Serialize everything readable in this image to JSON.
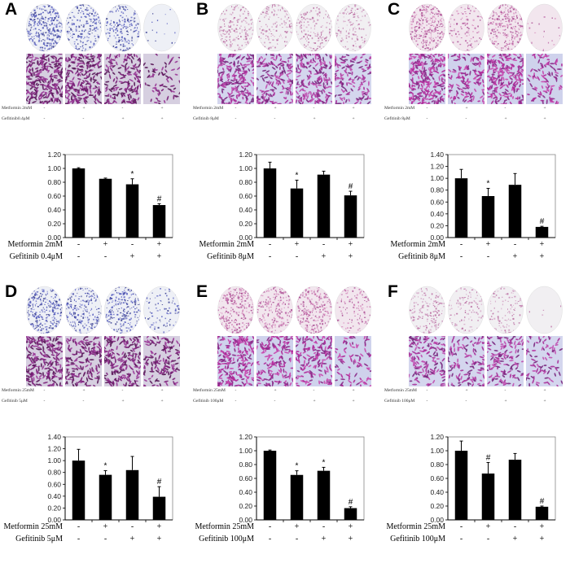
{
  "colors": {
    "bar": "#000000",
    "oval_crystal_violet": "#5a5fc0",
    "oval_pink": "#c05aa8",
    "micro_purple": "#8a2a8a",
    "micro_bg": "#c8c8e0"
  },
  "chart_data": [
    {
      "panel": "A",
      "type": "bar",
      "categories": [
        "1",
        "2",
        "3",
        "4"
      ],
      "values": [
        1.0,
        0.85,
        0.77,
        0.47
      ],
      "errors": [
        0.01,
        0.01,
        0.08,
        0.02
      ],
      "annotations": [
        "",
        "",
        "*",
        "#"
      ],
      "ylim": [
        0,
        1.2
      ],
      "yticks": [
        "0.00",
        "0.20",
        "0.40",
        "0.60",
        "0.80",
        "1.00",
        "1.20"
      ],
      "rows": [
        {
          "label": "Metformin 2mM",
          "signs": [
            "-",
            "+",
            "-",
            "+"
          ]
        },
        {
          "label": "Gefitinib 0.4μM",
          "signs": [
            "-",
            "-",
            "+",
            "+"
          ]
        }
      ],
      "image_rows": [
        {
          "label": "Metformin 2mM",
          "signs": [
            "-",
            "+",
            "-",
            "+"
          ]
        },
        {
          "label": "Gefitinib0.4μM",
          "signs": [
            "-",
            "-",
            "+",
            "+"
          ]
        }
      ],
      "stain": "violet",
      "oval_density": [
        0.9,
        0.6,
        0.5,
        0.05
      ],
      "micro_density": [
        0.9,
        0.8,
        0.6,
        0.25
      ]
    },
    {
      "panel": "B",
      "type": "bar",
      "categories": [
        "1",
        "2",
        "3",
        "4"
      ],
      "values": [
        1.0,
        0.71,
        0.91,
        0.61
      ],
      "errors": [
        0.09,
        0.12,
        0.05,
        0.06
      ],
      "annotations": [
        "",
        "*",
        "",
        "#"
      ],
      "ylim": [
        0,
        1.2
      ],
      "yticks": [
        "0.00",
        "0.20",
        "0.40",
        "0.60",
        "0.80",
        "1.00",
        "1.20"
      ],
      "rows": [
        {
          "label": "Metformin 2mM",
          "signs": [
            "-",
            "+",
            "-",
            "+"
          ]
        },
        {
          "label": "Gefitinib 8μM",
          "signs": [
            "-",
            "-",
            "+",
            "+"
          ]
        }
      ],
      "image_rows": [
        {
          "label": "Metformin 2mM",
          "signs": [
            "-",
            "+",
            "-",
            "+"
          ]
        },
        {
          "label": "Gefitinib 8μM",
          "signs": [
            "-",
            "-",
            "+",
            "+"
          ]
        }
      ],
      "stain": "pink-light",
      "oval_density": [
        0.5,
        0.4,
        0.45,
        0.35
      ],
      "micro_density": [
        0.8,
        0.6,
        0.7,
        0.5
      ]
    },
    {
      "panel": "C",
      "type": "bar",
      "categories": [
        "1",
        "2",
        "3",
        "4"
      ],
      "values": [
        1.0,
        0.7,
        0.89,
        0.18
      ],
      "errors": [
        0.15,
        0.13,
        0.19,
        0.01
      ],
      "annotations": [
        "",
        "*",
        "",
        "#"
      ],
      "ylim": [
        0,
        1.4
      ],
      "yticks": [
        "0.00",
        "0.20",
        "0.40",
        "0.60",
        "0.80",
        "1.00",
        "1.20",
        "1.40"
      ],
      "rows": [
        {
          "label": "Metformin 2mM",
          "signs": [
            "-",
            "+",
            "-",
            "+"
          ]
        },
        {
          "label": "Gefitinib 8μM",
          "signs": [
            "-",
            "-",
            "+",
            "+"
          ]
        }
      ],
      "image_rows": [
        {
          "label": "Metformin 2mM",
          "signs": [
            "-",
            "+",
            "-",
            "+"
          ]
        },
        {
          "label": "Gefitinib 8μM",
          "signs": [
            "-",
            "-",
            "+",
            "+"
          ]
        }
      ],
      "stain": "pink",
      "oval_density": [
        0.8,
        0.3,
        0.7,
        0.05
      ],
      "micro_density": [
        0.9,
        0.5,
        0.8,
        0.35
      ]
    },
    {
      "panel": "D",
      "type": "bar",
      "categories": [
        "1",
        "2",
        "3",
        "4"
      ],
      "values": [
        1.0,
        0.76,
        0.84,
        0.39
      ],
      "errors": [
        0.19,
        0.07,
        0.23,
        0.17
      ],
      "annotations": [
        "",
        "*",
        "",
        "#"
      ],
      "ylim": [
        0,
        1.4
      ],
      "yticks": [
        "0.00",
        "0.20",
        "0.40",
        "0.60",
        "0.80",
        "1.00",
        "1.20",
        "1.40"
      ],
      "rows": [
        {
          "label": "Metformin 25mM",
          "signs": [
            "-",
            "+",
            "-",
            "+"
          ]
        },
        {
          "label": "Gefitinib 5μM",
          "signs": [
            "-",
            "-",
            "+",
            "+"
          ]
        }
      ],
      "image_rows": [
        {
          "label": "Metformin 25mM",
          "signs": [
            "-",
            "+",
            "-",
            "+"
          ]
        },
        {
          "label": "Gefitinib 5μM",
          "signs": [
            "-",
            "-",
            "+",
            "+"
          ]
        }
      ],
      "stain": "violet",
      "oval_density": [
        0.8,
        0.6,
        0.6,
        0.25
      ],
      "micro_density": [
        0.8,
        0.6,
        0.7,
        0.5
      ]
    },
    {
      "panel": "E",
      "type": "bar",
      "categories": [
        "1",
        "2",
        "3",
        "4"
      ],
      "values": [
        1.0,
        0.65,
        0.71,
        0.17
      ],
      "errors": [
        0.01,
        0.06,
        0.05,
        0.02
      ],
      "annotations": [
        "",
        "*",
        "*",
        "#"
      ],
      "ylim": [
        0,
        1.2
      ],
      "yticks": [
        "0.00",
        "0.20",
        "0.40",
        "0.60",
        "0.80",
        "1.00",
        "1.20"
      ],
      "rows": [
        {
          "label": "Metformin 25mM",
          "signs": [
            "-",
            "+",
            "-",
            "+"
          ]
        },
        {
          "label": "Gefitinib 100μM",
          "signs": [
            "-",
            "-",
            "+",
            "+"
          ]
        }
      ],
      "image_rows": [
        {
          "label": "Metformin 25mM",
          "signs": [
            "-",
            "+",
            "-",
            "+"
          ]
        },
        {
          "label": "Gefitinib 100μM",
          "signs": [
            "-",
            "-",
            "+",
            "+"
          ]
        }
      ],
      "stain": "pink",
      "oval_density": [
        0.8,
        0.6,
        0.7,
        0.3
      ],
      "micro_density": [
        0.8,
        0.6,
        0.6,
        0.3
      ]
    },
    {
      "panel": "F",
      "type": "bar",
      "categories": [
        "1",
        "2",
        "3",
        "4"
      ],
      "values": [
        1.0,
        0.67,
        0.87,
        0.19
      ],
      "errors": [
        0.14,
        0.16,
        0.09,
        0.01
      ],
      "annotations": [
        "",
        "#",
        "",
        "#"
      ],
      "ylim": [
        0,
        1.2
      ],
      "yticks": [
        "0.00",
        "0.20",
        "0.40",
        "0.60",
        "0.80",
        "1.00",
        "1.20"
      ],
      "rows": [
        {
          "label": "Metformin 25mM",
          "signs": [
            "-",
            "+",
            "-",
            "+"
          ]
        },
        {
          "label": "Gefitinib 100μM",
          "signs": [
            "-",
            "-",
            "+",
            "+"
          ]
        }
      ],
      "image_rows": [
        {
          "label": "Metformin 25mM",
          "signs": [
            "-",
            "+",
            "-",
            "+"
          ]
        },
        {
          "label": "Gefitinib 100μM",
          "signs": [
            "-",
            "-",
            "+",
            "+"
          ]
        }
      ],
      "stain": "pink-light",
      "oval_density": [
        0.5,
        0.3,
        0.3,
        0.02
      ],
      "micro_density": [
        0.6,
        0.45,
        0.5,
        0.3
      ]
    }
  ]
}
